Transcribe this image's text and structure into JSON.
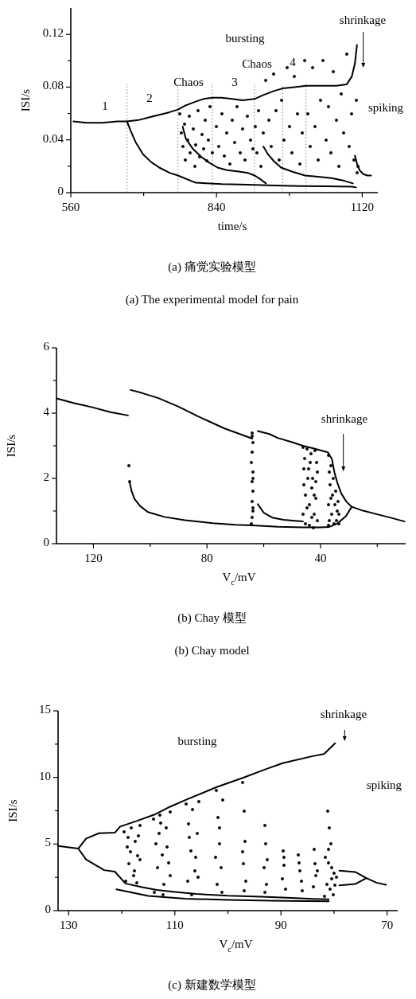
{
  "chart_data": [
    {
      "type": "scatter",
      "title": "(a) 痛觉实验模型",
      "subtitle": "(a) The experimental model for pain",
      "xlabel": "time/s",
      "ylabel": "ISI/s",
      "xlim": [
        560,
        1150
      ],
      "ylim": [
        0,
        0.14
      ],
      "xticks": [
        560,
        {
          "value": 700,
          "label": null
        },
        840,
        {
          "value": 980,
          "label": null
        },
        1120
      ],
      "yticks": [
        0,
        {
          "value": 0.02,
          "label": null
        },
        0.04,
        {
          "value": 0.06,
          "label": null
        },
        0.08,
        {
          "value": 0.1,
          "label": null
        },
        0.12
      ],
      "ref_lines": [
        {
          "axis": "x",
          "value": 668,
          "color": "#808080",
          "line_style": "dotted"
        },
        {
          "axis": "x",
          "value": 766,
          "color": "#808080",
          "line_style": "dotted"
        },
        {
          "axis": "x",
          "value": 832,
          "color": "#808080",
          "line_style": "dotted"
        },
        {
          "axis": "x",
          "value": 913,
          "color": "#808080",
          "line_style": "dotted"
        },
        {
          "axis": "x",
          "value": 967,
          "color": "#808080",
          "line_style": "dotted"
        },
        {
          "axis": "x",
          "value": 1012,
          "color": "#808080",
          "line_style": "dotted"
        }
      ],
      "annotations": [
        "shrinkage",
        "bursting",
        "spiking",
        "1",
        "2",
        "Chaos",
        "3",
        "Chaos",
        "4"
      ],
      "series": [
        {
          "type": "line",
          "color": "#000000",
          "x": [
            565,
            590,
            620,
            650,
            668,
            690,
            710,
            730,
            750,
            766,
            780,
            800,
            815,
            832,
            850,
            870,
            890,
            913,
            930,
            950,
            967,
            990,
            1012,
            1040,
            1070,
            1090,
            1100,
            1106,
            1110
          ],
          "values": [
            0.054,
            0.053,
            0.053,
            0.054,
            0.054,
            0.055,
            0.057,
            0.059,
            0.061,
            0.063,
            0.066,
            0.069,
            0.071,
            0.072,
            0.072,
            0.071,
            0.07,
            0.071,
            0.074,
            0.077,
            0.079,
            0.08,
            0.081,
            0.081,
            0.081,
            0.082,
            0.088,
            0.098,
            0.112
          ]
        },
        {
          "type": "line",
          "color": "#000000",
          "x": [
            668,
            675,
            685,
            699,
            715,
            730,
            750,
            766,
            800,
            850,
            900,
            950,
            1000,
            1050,
            1100,
            1108
          ],
          "values": [
            0.054,
            0.047,
            0.038,
            0.029,
            0.023,
            0.019,
            0.015,
            0.013,
            0.0075,
            0.0065,
            0.006,
            0.0055,
            0.005,
            0.0048,
            0.0045,
            0.004
          ]
        },
        {
          "type": "line",
          "color": "#000000",
          "x": [
            775,
            781,
            795,
            811,
            825,
            842,
            860,
            883,
            900,
            913,
            925,
            935
          ],
          "values": [
            0.05,
            0.041,
            0.033,
            0.027,
            0.023,
            0.019,
            0.017,
            0.016,
            0.015,
            0.013,
            0.01,
            0.007
          ]
        },
        {
          "type": "line",
          "color": "#000000",
          "x": [
            930,
            939,
            950,
            964,
            985,
            1010,
            1035,
            1061,
            1085,
            1102
          ],
          "values": [
            0.035,
            0.029,
            0.024,
            0.019,
            0.016,
            0.013,
            0.012,
            0.011,
            0.009,
            0.007
          ]
        },
        {
          "type": "line",
          "color": "#000000",
          "x": [
            1106,
            1110,
            1115,
            1122,
            1130,
            1137
          ],
          "values": [
            0.028,
            0.022,
            0.017,
            0.014,
            0.013,
            0.013
          ]
        },
        {
          "marker": "circle",
          "color": "#000000",
          "x": [
            770,
            772,
            775,
            778,
            780,
            785,
            788,
            790,
            795,
            798,
            800,
            805,
            808,
            812,
            815,
            818,
            822,
            825,
            828,
            832,
            840,
            845,
            850,
            855,
            860,
            865,
            870,
            875,
            880,
            885,
            890,
            895,
            900,
            905,
            910,
            915,
            918,
            920,
            925,
            930,
            935,
            940,
            945,
            950,
            955,
            960,
            965,
            970,
            975,
            980,
            985,
            990,
            995,
            1000,
            1005,
            1010,
            1015,
            1020,
            1025,
            1030,
            1035,
            1040,
            1045,
            1050,
            1055,
            1060,
            1065,
            1070,
            1075,
            1080,
            1085,
            1090,
            1095,
            1100,
            1104,
            1108,
            1110,
            1112
          ],
          "values": [
            0.06,
            0.045,
            0.035,
            0.052,
            0.025,
            0.04,
            0.058,
            0.03,
            0.048,
            0.02,
            0.036,
            0.062,
            0.027,
            0.044,
            0.033,
            0.055,
            0.024,
            0.04,
            0.065,
            0.03,
            0.05,
            0.035,
            0.06,
            0.028,
            0.045,
            0.022,
            0.055,
            0.038,
            0.065,
            0.03,
            0.048,
            0.025,
            0.058,
            0.04,
            0.033,
            0.05,
            0.03,
            0.062,
            0.02,
            0.045,
            0.085,
            0.055,
            0.035,
            0.09,
            0.062,
            0.025,
            0.07,
            0.04,
            0.095,
            0.05,
            0.03,
            0.088,
            0.06,
            0.022,
            0.045,
            0.1,
            0.06,
            0.035,
            0.095,
            0.05,
            0.025,
            0.07,
            0.1,
            0.04,
            0.065,
            0.03,
            0.092,
            0.055,
            0.02,
            0.075,
            0.045,
            0.105,
            0.035,
            0.06,
            0.025,
            0.07,
            0.015,
            0.02
          ]
        }
      ]
    },
    {
      "type": "scatter",
      "title": "(b) Chay 模型",
      "subtitle": "(b) Chay model",
      "xlabel": "V$_{c}$/mV",
      "ylabel": "ISI/s",
      "xlim": [
        133,
        10
      ],
      "ylim": [
        0,
        6
      ],
      "xticks": [
        120,
        {
          "value": 100,
          "label": null
        },
        80,
        {
          "value": 60,
          "label": null
        },
        40,
        {
          "value": 20,
          "label": null
        }
      ],
      "yticks": [
        0,
        {
          "value": 1,
          "label": null
        },
        2,
        {
          "value": 3,
          "label": null
        },
        4,
        {
          "value": 5,
          "label": null
        },
        6
      ],
      "annotations": [
        "shrinkage"
      ],
      "series": [
        {
          "type": "line",
          "color": "#000000",
          "x": [
            133,
            127,
            120.4,
            114,
            107.8
          ],
          "values": [
            4.45,
            4.31,
            4.18,
            4.03,
            3.93
          ]
        },
        {
          "type": "line",
          "color": "#000000",
          "x": [
            106.9,
            103,
            97.1,
            90,
            83.1,
            73.8,
            64.0
          ],
          "values": [
            4.71,
            4.62,
            4.46,
            4.2,
            3.9,
            3.53,
            3.22
          ]
        },
        {
          "type": "line",
          "color": "#000000",
          "x": [
            62.1,
            58,
            55.1,
            50,
            46.2,
            42,
            37.4,
            36,
            35.1,
            34,
            32.7,
            30.9,
            29.0,
            25,
            20,
            15,
            10.4
          ],
          "values": [
            3.45,
            3.36,
            3.24,
            3.11,
            3.0,
            2.91,
            2.8,
            2.6,
            2.19,
            1.85,
            1.54,
            1.29,
            1.13,
            1.01,
            0.9,
            0.79,
            0.68
          ]
        },
        {
          "type": "line",
          "color": "#000000",
          "x": [
            107.3,
            106.5,
            105.5,
            103.5,
            100.8,
            95,
            87.7,
            78,
            70,
            64.0,
            55,
            46.2,
            40,
            37.0,
            34,
            31,
            29.0
          ],
          "values": [
            1.9,
            1.6,
            1.37,
            1.15,
            0.97,
            0.82,
            0.72,
            0.63,
            0.58,
            0.56,
            0.52,
            0.5,
            0.5,
            0.51,
            0.62,
            0.85,
            1.13
          ]
        },
        {
          "type": "line",
          "color": "#000000",
          "x": [
            62.1,
            60,
            57.0,
            53,
            49,
            46.2
          ],
          "values": [
            1.21,
            0.95,
            0.8,
            0.73,
            0.7,
            0.68
          ]
        },
        {
          "marker": "circle",
          "color": "#000000",
          "x": [
            107.5,
            107.2,
            64.2,
            63.8,
            64.0,
            64.3,
            63.7,
            64.1,
            63.9,
            64.2,
            63.8,
            64.0,
            64.3,
            63.7,
            64.0,
            63.9,
            46.2,
            45.5,
            44.8,
            44.1,
            43.4,
            42.7,
            42.0,
            41.3,
            46.0,
            45.2,
            44.5,
            43.8,
            43.0,
            42.3,
            41.6,
            41.0,
            46.1,
            45.4,
            44.7,
            44.0,
            43.2,
            42.5,
            41.8,
            41.1,
            45.8,
            43.6,
            42.2,
            37.3,
            37.0,
            36.6,
            36.2,
            35.8,
            35.4,
            35.0,
            34.6,
            34.2,
            33.8,
            33.4,
            37.2,
            36.8,
            36.0,
            35.2,
            34.4,
            33.6,
            37.1,
            36.4
          ],
          "values": [
            2.4,
            1.9,
            3.4,
            3.1,
            2.8,
            2.5,
            2.2,
            1.9,
            1.6,
            1.3,
            1.0,
            0.8,
            0.6,
            2.0,
            3.3,
            1.1,
            2.95,
            2.6,
            2.9,
            2.3,
            2.75,
            2.0,
            2.85,
            2.5,
            1.8,
            1.5,
            2.0,
            1.2,
            1.7,
            0.9,
            1.4,
            2.2,
            0.9,
            0.6,
            1.1,
            0.55,
            0.8,
            0.5,
            1.9,
            0.7,
            2.3,
            2.5,
            1.5,
            2.7,
            2.2,
            1.8,
            2.4,
            1.5,
            2.0,
            1.2,
            1.6,
            1.0,
            1.3,
            0.9,
            1.2,
            0.7,
            0.9,
            0.6,
            0.7,
            0.6,
            0.55,
            1.4
          ]
        }
      ]
    },
    {
      "type": "scatter",
      "title": "(c) 新建数学模型",
      "xlabel": "V$_{c}$/mV",
      "ylabel": "ISI/s",
      "xlim": [
        132,
        68
      ],
      "ylim": [
        0,
        15
      ],
      "xticks": [
        130,
        {
          "value": 120,
          "label": null
        },
        110,
        {
          "value": 100,
          "label": null
        },
        90,
        {
          "value": 80,
          "label": null
        },
        70
      ],
      "yticks": [
        0,
        {
          "value": 2.5,
          "label": null
        },
        5,
        {
          "value": 7.5,
          "label": null
        },
        10,
        {
          "value": 12.5,
          "label": null
        },
        15
      ],
      "annotations": [
        "shrinkage",
        "bursting",
        "spiking"
      ],
      "series": [
        {
          "type": "line",
          "color": "#000000",
          "x": [
            132,
            128.2
          ],
          "values": [
            4.86,
            4.66
          ]
        },
        {
          "type": "line",
          "color": "#000000",
          "x": [
            128.2,
            126.7,
            124.3,
            121.3,
            120.3,
            117.4,
            113.9,
            110.9,
            107.5,
            102.0,
            97.1,
            93.2,
            89.7,
            84,
            81.9,
            79.8
          ],
          "values": [
            4.66,
            5.42,
            5.81,
            5.85,
            6.31,
            6.7,
            7.2,
            7.8,
            8.39,
            9.29,
            9.98,
            10.57,
            11.07,
            11.6,
            11.76,
            12.56
          ]
        },
        {
          "type": "line",
          "color": "#000000",
          "x": [
            128.2,
            126.7,
            123.3,
            121.3,
            119.3,
            116,
            113.4,
            110,
            106,
            100,
            93.7,
            88,
            84,
            81
          ],
          "values": [
            4.66,
            3.83,
            3.04,
            2.93,
            2.04,
            1.75,
            1.55,
            1.4,
            1.25,
            1.12,
            1.05,
            0.95,
            0.88,
            0.85
          ]
        },
        {
          "type": "line",
          "color": "#000000",
          "x": [
            121,
            115,
            108,
            100,
            92,
            85,
            81
          ],
          "values": [
            1.6,
            1.1,
            0.9,
            0.8,
            0.75,
            0.72,
            0.7
          ]
        },
        {
          "type": "line",
          "color": "#000000",
          "x": [
            79,
            76,
            73.9,
            72,
            70.2
          ],
          "values": [
            3.0,
            2.9,
            2.44,
            2.1,
            1.94
          ]
        },
        {
          "type": "line",
          "color": "#000000",
          "x": [
            79,
            76,
            73.9
          ],
          "values": [
            1.9,
            2.0,
            2.44
          ]
        },
        {
          "marker": "circle",
          "color": "#000000",
          "x": [
            119.5,
            119.0,
            118.6,
            118.2,
            117.8,
            117.4,
            117.0,
            116.6,
            119.2,
            118.4,
            117.6,
            116.8,
            118.8,
            117.2,
            116.5,
            114.0,
            113.6,
            113.2,
            112.8,
            112.4,
            112.0,
            111.6,
            111.2,
            110.8,
            113.8,
            113.0,
            112.2,
            111.4,
            110.9,
            112.6,
            107.8,
            107.4,
            107.0,
            106.6,
            106.2,
            105.8,
            105.4,
            107.6,
            106.8,
            106.0,
            105.6,
            107.2,
            102.2,
            101.9,
            101.6,
            101.3,
            101.0,
            102.0,
            101.5,
            101.1,
            102.3,
            97.2,
            97.0,
            96.8,
            97.1,
            96.6,
            96.9,
            97.3,
            93.1,
            92.9,
            93.2,
            92.7,
            93.0,
            92.6,
            89.6,
            89.4,
            89.7,
            89.2,
            89.5,
            86.8,
            86.5,
            86.2,
            86.6,
            86.0,
            83.8,
            83.6,
            83.4,
            83.9,
            83.2,
            81.2,
            80.9,
            80.6,
            81.6,
            81.0,
            80.4,
            80.0,
            79.6,
            81.4,
            80.8,
            80.2,
            79.8,
            81.8,
            80.5,
            81.1
          ],
          "values": [
            5.9,
            4.8,
            3.5,
            6.2,
            2.6,
            5.2,
            4.1,
            6.4,
            2.2,
            4.4,
            3.0,
            5.6,
            5.5,
            2.1,
            3.8,
            6.9,
            5.0,
            3.2,
            7.2,
            4.2,
            2.0,
            6.2,
            3.6,
            7.4,
            1.4,
            5.8,
            1.2,
            4.8,
            2.6,
            6.6,
            8.0,
            6.5,
            4.5,
            7.6,
            3.0,
            5.8,
            8.2,
            2.2,
            1.2,
            4.0,
            2.5,
            5.5,
            9.0,
            7.0,
            5.0,
            3.2,
            8.3,
            2.0,
            6.2,
            1.4,
            4.0,
            9.6,
            7.5,
            5.2,
            3.5,
            2.2,
            1.5,
            4.4,
            6.4,
            5.0,
            3.2,
            2.0,
            1.4,
            3.8,
            4.5,
            3.4,
            2.4,
            1.6,
            4.0,
            4.2,
            3.0,
            2.2,
            3.6,
            1.5,
            4.6,
            3.5,
            2.6,
            1.8,
            3.0,
            7.5,
            6.2,
            5.0,
            4.0,
            3.6,
            3.2,
            2.8,
            2.5,
            2.0,
            1.6,
            1.2,
            1.9,
            1.1,
            2.4,
            4.6
          ]
        }
      ]
    }
  ]
}
